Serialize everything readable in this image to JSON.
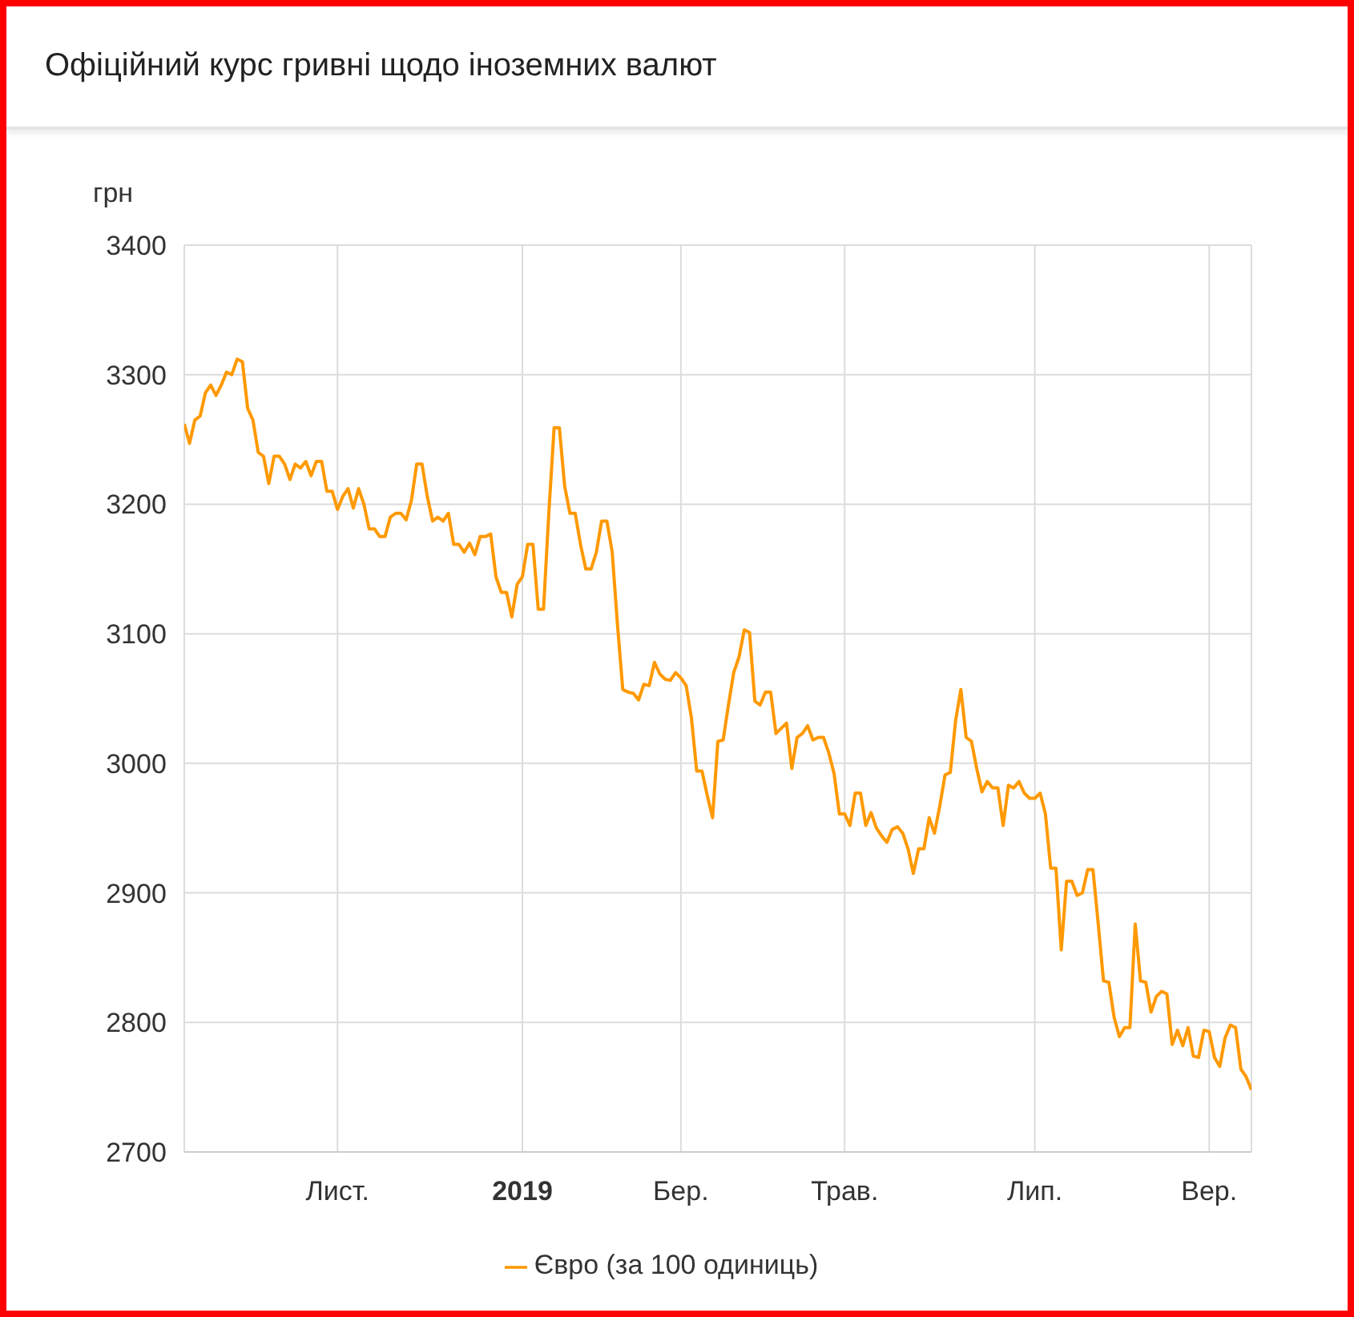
{
  "chart_data": {
    "type": "line",
    "title": "Офіційний курс гривні щодо іноземних валют",
    "ylabel": "грн",
    "ylim": [
      2700,
      3400
    ],
    "yticks": [
      2700,
      2800,
      2900,
      3000,
      3100,
      3200,
      3300,
      3400
    ],
    "grid": true,
    "legend": "bottom",
    "categories": [
      null,
      null,
      null,
      null,
      null,
      null,
      null,
      null,
      null,
      null,
      null,
      null,
      null,
      null,
      null,
      null,
      null,
      null,
      null,
      null,
      null,
      null,
      null,
      null,
      null,
      null,
      null,
      null,
      null,
      "Лист.",
      null,
      null,
      null,
      null,
      null,
      null,
      null,
      null,
      null,
      null,
      null,
      null,
      null,
      null,
      null,
      null,
      null,
      null,
      null,
      null,
      null,
      null,
      null,
      null,
      null,
      null,
      null,
      null,
      null,
      null,
      null,
      null,
      null,
      null,
      "2019",
      null,
      null,
      null,
      null,
      null,
      null,
      null,
      null,
      null,
      null,
      null,
      null,
      null,
      null,
      null,
      null,
      null,
      null,
      null,
      null,
      null,
      null,
      null,
      null,
      null,
      null,
      null,
      null,
      null,
      "Бер.",
      null,
      null,
      null,
      null,
      null,
      null,
      null,
      null,
      null,
      null,
      null,
      null,
      null,
      null,
      null,
      null,
      null,
      null,
      null,
      null,
      null,
      null,
      null,
      null,
      null,
      null,
      null,
      null,
      null,
      null,
      "Трав.",
      null,
      null,
      null,
      null,
      null,
      null,
      null,
      null,
      null,
      null,
      null,
      null,
      null,
      null,
      null,
      null,
      null,
      null,
      null,
      null,
      null,
      null,
      null,
      null,
      null,
      null,
      null,
      null,
      null,
      null,
      null,
      null,
      null,
      null,
      null,
      "Лип.",
      null,
      null,
      null,
      null,
      null,
      null,
      null,
      null,
      null,
      null,
      null,
      null,
      null,
      null,
      null,
      null,
      null,
      null,
      null,
      null,
      null,
      null,
      null,
      null,
      null,
      null,
      null,
      null,
      null,
      null,
      null,
      null,
      "Вер.",
      null,
      null,
      null,
      null,
      null,
      null,
      null,
      null
    ],
    "series": [
      {
        "name": "Євро (за 100 одиниць)",
        "color": "#ff9900",
        "values": [
          3262,
          3247,
          3265,
          3268,
          3286,
          3292,
          3284,
          3292,
          3302,
          3300,
          3312,
          3310,
          3274,
          3265,
          3240,
          3237,
          3216,
          3237,
          3237,
          3231,
          3219,
          3231,
          3228,
          3233,
          3222,
          3233,
          3233,
          3210,
          3210,
          3196,
          3206,
          3212,
          3197,
          3212,
          3200,
          3181,
          3181,
          3175,
          3175,
          3190,
          3193,
          3193,
          3188,
          3203,
          3231,
          3231,
          3206,
          3187,
          3190,
          3187,
          3193,
          3169,
          3169,
          3163,
          3170,
          3161,
          3175,
          3175,
          3177,
          3144,
          3132,
          3132,
          3113,
          3138,
          3144,
          3169,
          3169,
          3119,
          3119,
          3193,
          3259,
          3259,
          3214,
          3193,
          3193,
          3169,
          3150,
          3150,
          3163,
          3187,
          3187,
          3163,
          3107,
          3057,
          3055,
          3054,
          3049,
          3061,
          3060,
          3078,
          3069,
          3065,
          3064,
          3070,
          3066,
          3060,
          3035,
          2994,
          2994,
          2975,
          2958,
          3017,
          3018,
          3045,
          3070,
          3082,
          3103,
          3101,
          3048,
          3045,
          3055,
          3055,
          3023,
          3027,
          3031,
          2996,
          3020,
          3023,
          3029,
          3018,
          3020,
          3020,
          3008,
          2992,
          2961,
          2961,
          2952,
          2977,
          2977,
          2952,
          2962,
          2950,
          2944,
          2939,
          2949,
          2951,
          2946,
          2934,
          2915,
          2934,
          2934,
          2958,
          2946,
          2967,
          2991,
          2993,
          3033,
          3057,
          3020,
          3017,
          2996,
          2978,
          2986,
          2981,
          2981,
          2952,
          2983,
          2981,
          2986,
          2977,
          2973,
          2973,
          2977,
          2961,
          2919,
          2919,
          2856,
          2909,
          2909,
          2898,
          2900,
          2918,
          2918,
          2876,
          2832,
          2831,
          2804,
          2789,
          2796,
          2796,
          2876,
          2832,
          2831,
          2808,
          2820,
          2824,
          2822,
          2783,
          2794,
          2782,
          2796,
          2774,
          2773,
          2794,
          2793,
          2773,
          2766,
          2788,
          2798,
          2796,
          2764,
          2758,
          2748
        ]
      }
    ]
  }
}
